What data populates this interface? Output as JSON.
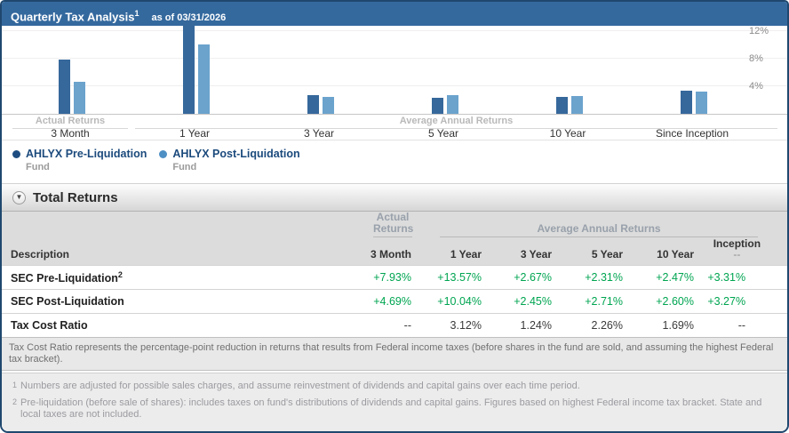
{
  "header": {
    "title": "Quarterly Tax Analysis",
    "title_sup": "1",
    "as_of": "as of 03/31/2026"
  },
  "chart_data": {
    "type": "bar",
    "title": "Quarterly Tax Analysis as of 03/31/2026",
    "categories": [
      "3 Month",
      "1 Year",
      "3 Year",
      "5 Year",
      "10 Year",
      "Since Inception"
    ],
    "group_labels": [
      {
        "label": "Actual Returns",
        "categories": [
          "3 Month"
        ]
      },
      {
        "label": "Average Annual Returns",
        "categories": [
          "1 Year",
          "3 Year",
          "5 Year",
          "10 Year",
          "Since Inception"
        ]
      }
    ],
    "series": [
      {
        "name": "AHLYX Pre-Liquidation",
        "sublabel": "Fund",
        "color": "#36689b",
        "values": [
          7.93,
          13.57,
          2.67,
          2.31,
          2.47,
          3.31
        ]
      },
      {
        "name": "AHLYX Post-Liquidation",
        "sublabel": "Fund",
        "color": "#6ba3cd",
        "values": [
          4.69,
          10.04,
          2.45,
          2.71,
          2.6,
          3.27
        ]
      }
    ],
    "y_ticks": [
      "4%",
      "8%",
      "12%"
    ],
    "ylim": [
      0,
      15.5
    ],
    "y_axis_side": "right",
    "grid": true,
    "legend_position": "bottom-left",
    "units": "percent"
  },
  "section": {
    "title": "Total Returns",
    "collapse_icon": "chevron-down-circle"
  },
  "table": {
    "group_headers": {
      "actual": "Actual Returns",
      "average": "Average Annual Returns"
    },
    "columns": [
      "Description",
      "3 Month",
      "1 Year",
      "3 Year",
      "5 Year",
      "10 Year",
      "Inception"
    ],
    "inception_sub": "--",
    "rows": [
      {
        "description": "SEC Pre-Liquidation",
        "sup": "2",
        "value_color": "green",
        "values": [
          "+7.93%",
          "+13.57%",
          "+2.67%",
          "+2.31%",
          "+2.47%",
          "+3.31%"
        ]
      },
      {
        "description": "SEC Post-Liquidation",
        "sup": "",
        "value_color": "green",
        "values": [
          "+4.69%",
          "+10.04%",
          "+2.45%",
          "+2.71%",
          "+2.60%",
          "+3.27%"
        ]
      },
      {
        "description": "Tax Cost Ratio",
        "sup": "",
        "value_color": "dark",
        "values": [
          "--",
          "3.12%",
          "1.24%",
          "2.26%",
          "1.69%",
          "--"
        ]
      }
    ]
  },
  "notes": {
    "tax_cost_note": "Tax Cost Ratio represents the percentage-point reduction in returns that results from Federal income taxes (before shares in the fund are sold, and assuming the highest Federal tax bracket).",
    "footnotes": [
      {
        "sup": "1",
        "text": "Numbers are adjusted for possible sales charges, and assume reinvestment of dividends and capital gains over each time period."
      },
      {
        "sup": "2",
        "text": "Pre-liquidation (before sale of shares): includes taxes on fund's distributions of dividends and capital gains. Figures based on highest Federal income tax bracket. State and local taxes are not included."
      }
    ]
  },
  "colors": {
    "header_bg": "#34699e",
    "panel_border": "#20486f",
    "pre_liquidation_bar": "#36689b",
    "post_liquidation_bar": "#6ba3cd",
    "positive_value_green": "#00a551"
  }
}
